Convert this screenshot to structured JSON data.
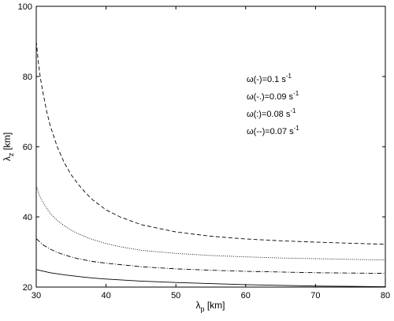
{
  "chart_data": {
    "type": "line",
    "xlabel": {
      "base": "λ",
      "sub": "p",
      "unit": " [km]"
    },
    "ylabel": {
      "base": "λ",
      "sub": "z",
      "unit": " [km]"
    },
    "xlim": [
      30,
      80
    ],
    "ylim": [
      20,
      100
    ],
    "xticks": [
      "30",
      "40",
      "50",
      "60",
      "70",
      "80"
    ],
    "yticks": [
      "20",
      "40",
      "60",
      "80",
      "100"
    ],
    "grid": false,
    "legend_position": "top-right",
    "legend": [
      {
        "base": "ω(-)=0.1 s",
        "sup": "-1"
      },
      {
        "base": "ω(-.)=0.09 s",
        "sup": "-1"
      },
      {
        "base": "ω(:)=0.08 s",
        "sup": "-1"
      },
      {
        "base": "ω(--)=0.07 s",
        "sup": "-1"
      }
    ],
    "series": [
      {
        "style": "solid",
        "color": "#000000",
        "points": [
          [
            30,
            25.0
          ],
          [
            32,
            24.1
          ],
          [
            34,
            23.5
          ],
          [
            36,
            23.0
          ],
          [
            38,
            22.6
          ],
          [
            40,
            22.3
          ],
          [
            45,
            21.7
          ],
          [
            50,
            21.3
          ],
          [
            55,
            21.0
          ],
          [
            60,
            20.7
          ],
          [
            65,
            20.5
          ],
          [
            70,
            20.3
          ],
          [
            75,
            20.2
          ],
          [
            80,
            20.1
          ]
        ]
      },
      {
        "style": "dashdot",
        "color": "#000000",
        "points": [
          [
            30,
            33.8
          ],
          [
            31,
            32.0
          ],
          [
            32,
            30.8
          ],
          [
            33,
            29.9
          ],
          [
            34,
            29.2
          ],
          [
            35,
            28.6
          ],
          [
            36,
            28.1
          ],
          [
            38,
            27.3
          ],
          [
            40,
            26.8
          ],
          [
            45,
            25.8
          ],
          [
            50,
            25.2
          ],
          [
            55,
            24.8
          ],
          [
            60,
            24.5
          ],
          [
            65,
            24.3
          ],
          [
            70,
            24.1
          ],
          [
            75,
            24.0
          ],
          [
            80,
            23.9
          ]
        ]
      },
      {
        "style": "dotted",
        "color": "#000000",
        "points": [
          [
            30,
            48.8
          ],
          [
            30.5,
            46.0
          ],
          [
            31,
            44.0
          ],
          [
            32,
            41.0
          ],
          [
            33,
            39.0
          ],
          [
            34,
            37.5
          ],
          [
            35,
            36.2
          ],
          [
            36,
            35.2
          ],
          [
            38,
            33.6
          ],
          [
            40,
            32.4
          ],
          [
            42,
            31.5
          ],
          [
            45,
            30.5
          ],
          [
            50,
            29.6
          ],
          [
            55,
            29.0
          ],
          [
            60,
            28.6
          ],
          [
            65,
            28.3
          ],
          [
            70,
            28.1
          ],
          [
            75,
            27.9
          ],
          [
            80,
            27.7
          ]
        ]
      },
      {
        "style": "dashed",
        "color": "#000000",
        "points": [
          [
            30,
            90.0
          ],
          [
            30.3,
            84.0
          ],
          [
            30.6,
            79.5
          ],
          [
            31,
            75.0
          ],
          [
            31.5,
            70.0
          ],
          [
            32,
            66.0
          ],
          [
            33,
            60.0
          ],
          [
            34,
            55.5
          ],
          [
            35,
            52.0
          ],
          [
            36,
            49.3
          ],
          [
            37,
            47.0
          ],
          [
            38,
            45.0
          ],
          [
            40,
            42.0
          ],
          [
            42,
            40.0
          ],
          [
            45,
            37.8
          ],
          [
            50,
            35.7
          ],
          [
            55,
            34.5
          ],
          [
            60,
            33.7
          ],
          [
            65,
            33.2
          ],
          [
            70,
            32.8
          ],
          [
            75,
            32.5
          ],
          [
            80,
            32.2
          ]
        ]
      }
    ]
  }
}
